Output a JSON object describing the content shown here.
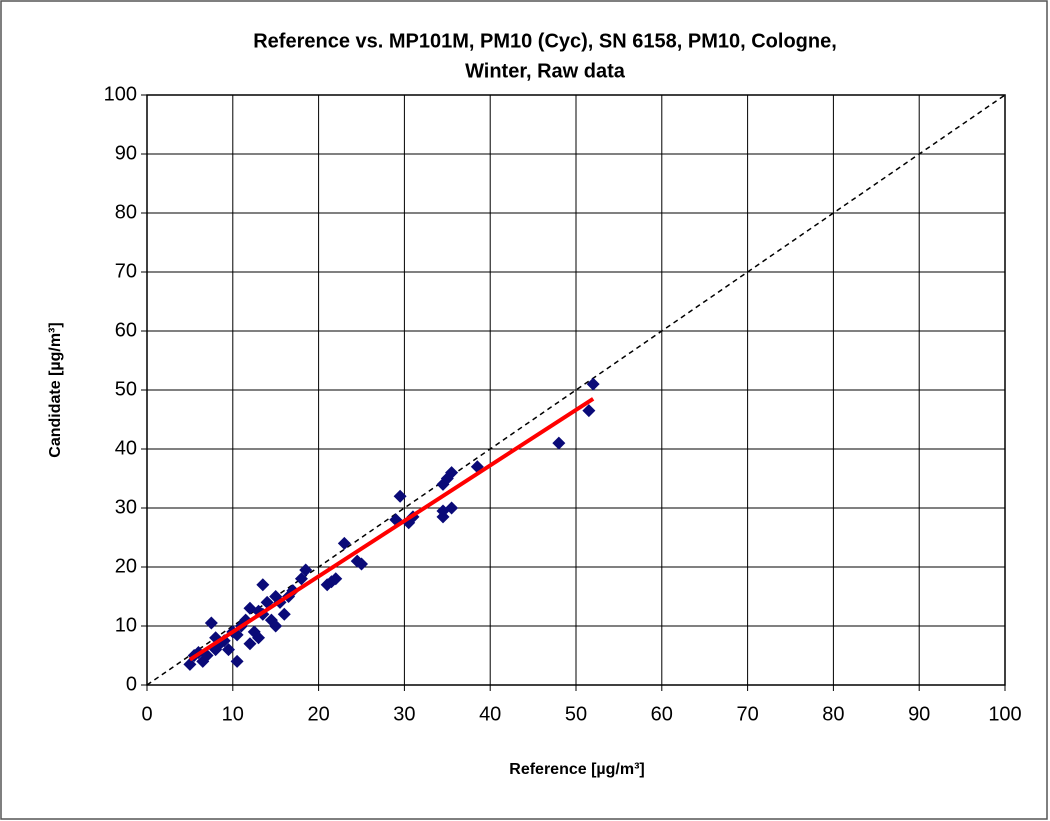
{
  "chart_data": {
    "type": "scatter",
    "title": [
      "Reference vs. MP101M, PM10 (Cyc), SN 6158, PM10, Cologne,",
      "Winter, Raw data"
    ],
    "x_label": "Reference [µg/m³]",
    "y_label": "Candidate [µg/m³]",
    "x": [
      5,
      5.5,
      6,
      6.5,
      7,
      7.5,
      8,
      8,
      8.5,
      9,
      9.5,
      10,
      10.5,
      10.5,
      11,
      11.5,
      12,
      12,
      12.5,
      13,
      13,
      13.5,
      13.5,
      14,
      14.5,
      15,
      15,
      15.5,
      16,
      16.5,
      17,
      18,
      18.5,
      21,
      21.5,
      22,
      23,
      24.5,
      25,
      29,
      29.5,
      30.5,
      31,
      34.5,
      34.5,
      34.5,
      35,
      35.5,
      35.5,
      38.5,
      48,
      51.5,
      52
    ],
    "values": [
      3.5,
      5,
      5.5,
      4,
      5,
      10.5,
      6,
      8,
      7,
      7.5,
      6,
      9,
      4,
      8.5,
      10,
      11,
      7,
      13,
      9,
      12.5,
      8,
      12,
      17,
      14,
      11,
      15,
      10,
      14,
      12,
      15,
      16,
      18,
      19.5,
      17,
      17.5,
      18,
      24,
      21,
      20.5,
      28,
      32,
      27.5,
      28.5,
      28.5,
      29.5,
      34,
      35,
      36,
      30,
      37,
      41,
      46.5,
      51
    ],
    "color": "#0a0a78",
    "fit": {
      "x": [
        5,
        52
      ],
      "y": [
        4.3,
        48.5
      ],
      "color": "#ff0000"
    },
    "diagonal": true,
    "xlim": [
      0,
      100
    ],
    "ylim": [
      0,
      100
    ],
    "xticks": [
      0,
      10,
      20,
      30,
      40,
      50,
      60,
      70,
      80,
      90,
      100
    ],
    "yticks": [
      0,
      10,
      20,
      30,
      40,
      50,
      60,
      70,
      80,
      90,
      100
    ],
    "grid": true
  }
}
